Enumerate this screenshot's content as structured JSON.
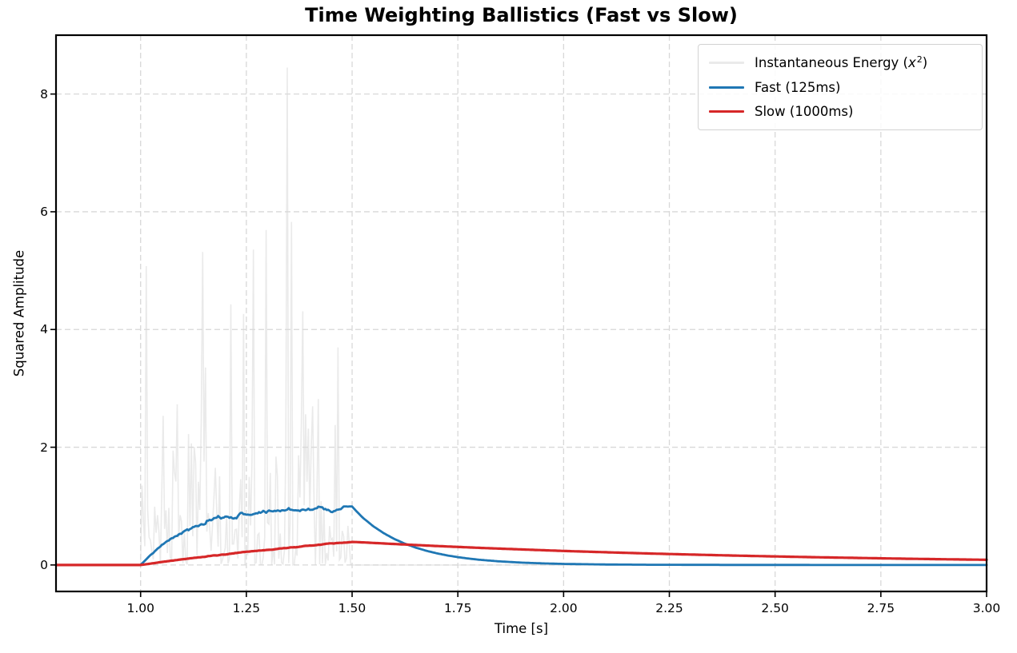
{
  "chart_data": {
    "type": "line",
    "title": "Time Weighting Ballistics (Fast vs Slow)",
    "xlabel": "Time [s]",
    "ylabel": "Squared Amplitude",
    "xlim": [
      0.8,
      3.0
    ],
    "ylim": [
      -0.45,
      9.0
    ],
    "xticks": [
      1.0,
      1.25,
      1.5,
      1.75,
      2.0,
      2.25,
      2.5,
      2.75,
      3.0
    ],
    "xtick_labels": [
      "1.00",
      "1.25",
      "1.50",
      "1.75",
      "2.00",
      "2.25",
      "2.50",
      "2.75",
      "3.00"
    ],
    "yticks": [
      0,
      2,
      4,
      6,
      8
    ],
    "ytick_labels": [
      "0",
      "2",
      "4",
      "6",
      "8"
    ],
    "grid": {
      "visible": true,
      "linestyle": "dashed",
      "color": "#d8d8d8"
    },
    "legend": {
      "position": "upper right",
      "entries": [
        {
          "label_plain": "Instantaneous Energy (x2)",
          "label_pre": "Instantaneous Energy (",
          "label_var": "x",
          "label_sup": "2",
          "label_post": ")",
          "color": "#eaeaea"
        },
        {
          "label": "Fast (125ms)",
          "color": "#1f77b4"
        },
        {
          "label": "Slow (1000ms)",
          "color": "#d62728"
        }
      ]
    },
    "series": [
      {
        "name": "Instantaneous Energy (x2)",
        "type": "noise_burst",
        "color": "#eaeaea",
        "t_start": 1.0,
        "t_end": 1.5,
        "sigma": 1.0,
        "sample_rate_hz": 300,
        "seed": 11,
        "peak": 8.45,
        "baseline": 0.0
      },
      {
        "name": "Fast (125ms)",
        "type": "ema",
        "tau_ms": 125,
        "color": "#1f77b4",
        "jitter": {
          "amplitude": 0.08,
          "seed": 7,
          "max": 0.995
        },
        "points": [
          [
            0.8,
            0
          ],
          [
            1.0,
            0
          ],
          [
            1.025,
            0.181
          ],
          [
            1.05,
            0.33
          ],
          [
            1.075,
            0.451
          ],
          [
            1.1,
            0.551
          ],
          [
            1.125,
            0.632
          ],
          [
            1.15,
            0.699
          ],
          [
            1.175,
            0.753
          ],
          [
            1.2,
            0.798
          ],
          [
            1.225,
            0.835
          ],
          [
            1.25,
            0.865
          ],
          [
            1.275,
            0.889
          ],
          [
            1.3,
            0.909
          ],
          [
            1.325,
            0.926
          ],
          [
            1.35,
            0.939
          ],
          [
            1.375,
            0.95
          ],
          [
            1.4,
            0.959
          ],
          [
            1.425,
            0.967
          ],
          [
            1.45,
            0.973
          ],
          [
            1.475,
            0.978
          ],
          [
            1.5,
            0.982
          ],
          [
            1.525,
            0.804
          ],
          [
            1.55,
            0.658
          ],
          [
            1.575,
            0.539
          ],
          [
            1.6,
            0.441
          ],
          [
            1.625,
            0.361
          ],
          [
            1.65,
            0.296
          ],
          [
            1.675,
            0.242
          ],
          [
            1.7,
            0.198
          ],
          [
            1.725,
            0.162
          ],
          [
            1.75,
            0.133
          ],
          [
            1.775,
            0.109
          ],
          [
            1.8,
            0.089
          ],
          [
            1.85,
            0.06
          ],
          [
            1.9,
            0.04
          ],
          [
            1.95,
            0.027
          ],
          [
            2.0,
            0.018
          ],
          [
            2.1,
            0.008
          ],
          [
            2.2,
            0.004
          ],
          [
            2.4,
            0.001
          ],
          [
            2.6,
            0
          ],
          [
            3.0,
            0
          ]
        ]
      },
      {
        "name": "Slow (1000ms)",
        "type": "ema",
        "tau_ms": 1000,
        "color": "#d62728",
        "jitter": {
          "amplitude": 0.012,
          "seed": 5,
          "max": 1.0
        },
        "points": [
          [
            0.8,
            0
          ],
          [
            1.0,
            0
          ],
          [
            1.05,
            0.049
          ],
          [
            1.1,
            0.095
          ],
          [
            1.15,
            0.139
          ],
          [
            1.2,
            0.181
          ],
          [
            1.25,
            0.221
          ],
          [
            1.3,
            0.259
          ],
          [
            1.35,
            0.295
          ],
          [
            1.4,
            0.33
          ],
          [
            1.45,
            0.362
          ],
          [
            1.5,
            0.393
          ],
          [
            1.6,
            0.356
          ],
          [
            1.7,
            0.322
          ],
          [
            1.8,
            0.291
          ],
          [
            1.9,
            0.264
          ],
          [
            2.0,
            0.238
          ],
          [
            2.1,
            0.216
          ],
          [
            2.2,
            0.195
          ],
          [
            2.3,
            0.177
          ],
          [
            2.4,
            0.16
          ],
          [
            2.5,
            0.145
          ],
          [
            2.6,
            0.131
          ],
          [
            2.7,
            0.119
          ],
          [
            2.8,
            0.107
          ],
          [
            2.9,
            0.097
          ],
          [
            3.0,
            0.088
          ]
        ]
      }
    ]
  }
}
